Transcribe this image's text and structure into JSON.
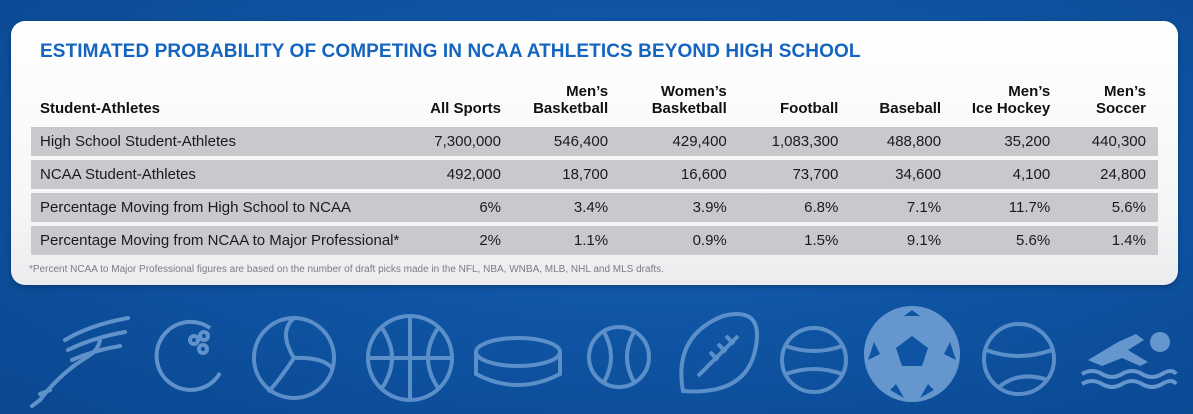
{
  "title": "ESTIMATED PROBABILITY OF COMPETING IN NCAA ATHLETICS BEYOND HIGH SCHOOL",
  "table": {
    "headers": [
      {
        "line1": "",
        "line2": "Student-Athletes"
      },
      {
        "line1": "",
        "line2": "All Sports"
      },
      {
        "line1": "Men’s",
        "line2": "Basketball"
      },
      {
        "line1": "Women’s",
        "line2": "Basketball"
      },
      {
        "line1": "",
        "line2": "Football"
      },
      {
        "line1": "",
        "line2": "Baseball"
      },
      {
        "line1": "Men’s",
        "line2": "Ice Hockey"
      },
      {
        "line1": "Men’s",
        "line2": "Soccer"
      }
    ],
    "rows": [
      [
        "High School Student-Athletes",
        "7,300,000",
        "546,400",
        "429,400",
        "1,083,300",
        "488,800",
        "35,200",
        "440,300"
      ],
      [
        "NCAA Student-Athletes",
        "492,000",
        "18,700",
        "16,600",
        "73,700",
        "34,600",
        "4,100",
        "24,800"
      ],
      [
        "Percentage Moving from High School to NCAA",
        "6%",
        "3.4%",
        "3.9%",
        "6.8%",
        "7.1%",
        "11.7%",
        "5.6%"
      ],
      [
        "Percentage Moving from NCAA to Major Professional*",
        "2%",
        "1.1%",
        "0.9%",
        "1.5%",
        "9.1%",
        "5.6%",
        "1.4%"
      ]
    ]
  },
  "footnote": "*Percent NCAA to Major Professional figures are based on the number of draft picks made in the NFL, NBA, WNBA, MLB, NHL and MLS drafts.",
  "decor_icons": [
    "winged-shoe-icon",
    "bowling-ball-icon",
    "volleyball-icon",
    "basketball-icon",
    "hockey-puck-icon",
    "baseball-icon",
    "football-icon",
    "tennis-ball-icon",
    "soccer-ball-icon",
    "tennis-ball-icon",
    "swimmer-icon"
  ],
  "colors": {
    "background": "#0f55a4",
    "title": "#1565c0",
    "row_fill": "#c9c9cd",
    "icon": "#6f9fd4"
  }
}
